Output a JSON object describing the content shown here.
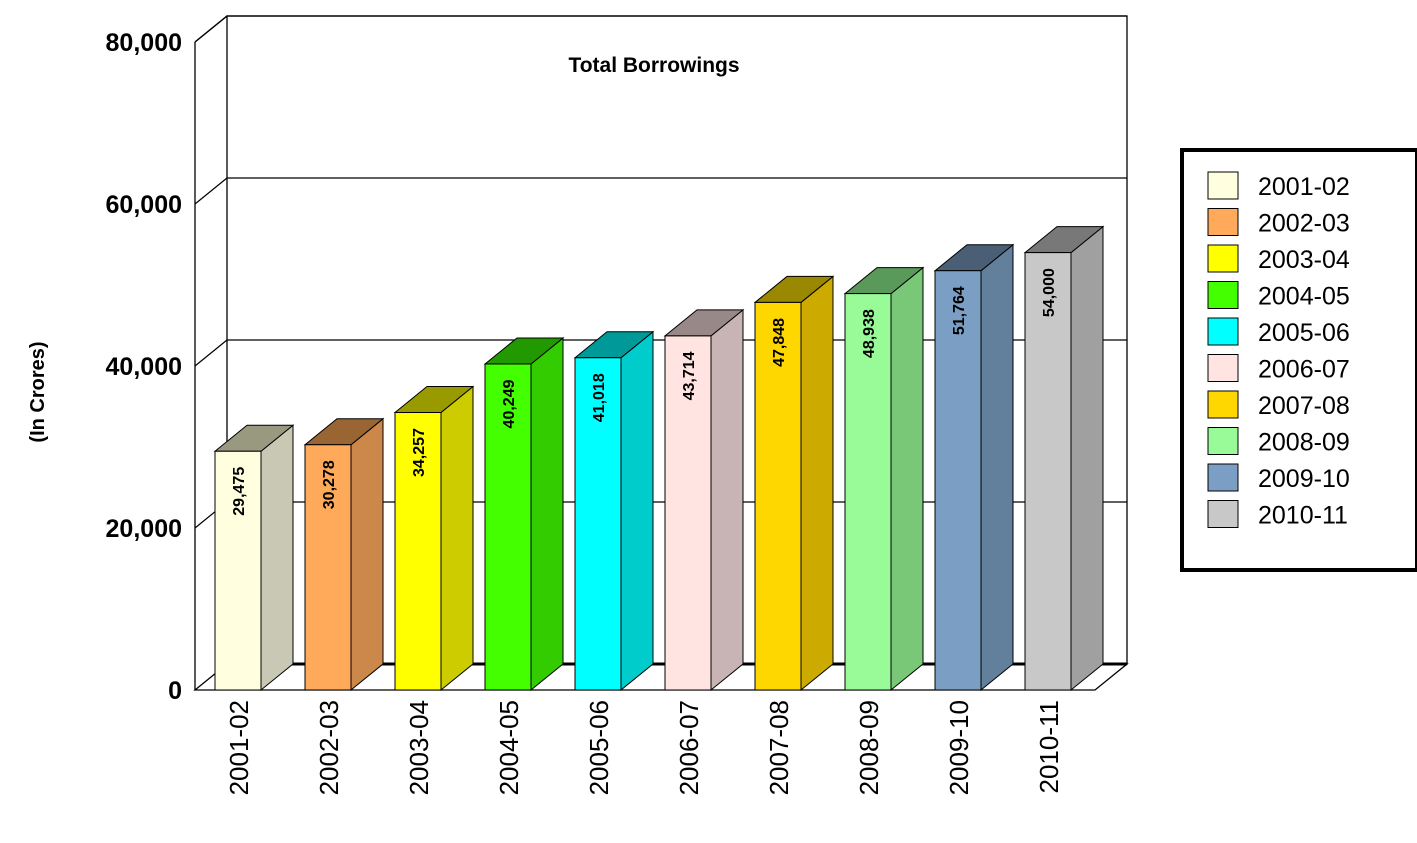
{
  "chart_data": {
    "type": "bar",
    "title": "Total Borrowings",
    "ylabel": "(In Crores)",
    "xlabel": "",
    "categories": [
      "2001-02",
      "2002-03",
      "2003-04",
      "2004-05",
      "2005-06",
      "2006-07",
      "2007-08",
      "2008-09",
      "2009-10",
      "2010-11"
    ],
    "values": [
      29475,
      30278,
      34257,
      40249,
      41018,
      43714,
      47848,
      48938,
      51764,
      54000
    ],
    "value_labels": [
      "29,475",
      "30,278",
      "34,257",
      "40,249",
      "41,018",
      "43,714",
      "47,848",
      "48,938",
      "51,764",
      "54,000"
    ],
    "ylim": [
      0,
      80000
    ],
    "yticks": [
      0,
      20000,
      40000,
      60000,
      80000
    ],
    "ytick_labels": [
      "0",
      "20,000",
      "40,000",
      "60,000",
      "80,000"
    ],
    "grid": true,
    "legend_position": "right",
    "legend": [
      "2001-02",
      "2002-03",
      "2003-04",
      "2004-05",
      "2005-06",
      "2006-07",
      "2007-08",
      "2008-09",
      "2009-10",
      "2010-11"
    ],
    "colors": {
      "front": [
        "#ffffe0",
        "#ffaa5a",
        "#ffff00",
        "#44ff00",
        "#00ffff",
        "#ffe4e1",
        "#ffd700",
        "#98fb98",
        "#7b9fc4",
        "#c8c8c8"
      ],
      "side": [
        "#c8c8b4",
        "#cc884a",
        "#cccc00",
        "#33cc00",
        "#00cccc",
        "#c8b4b4",
        "#ccaa00",
        "#78c878",
        "#627f9c",
        "#a0a0a0"
      ],
      "top": [
        "#999980",
        "#996633",
        "#999900",
        "#229900",
        "#009999",
        "#998888",
        "#998800",
        "#599959",
        "#4a5f75",
        "#787878"
      ]
    }
  }
}
